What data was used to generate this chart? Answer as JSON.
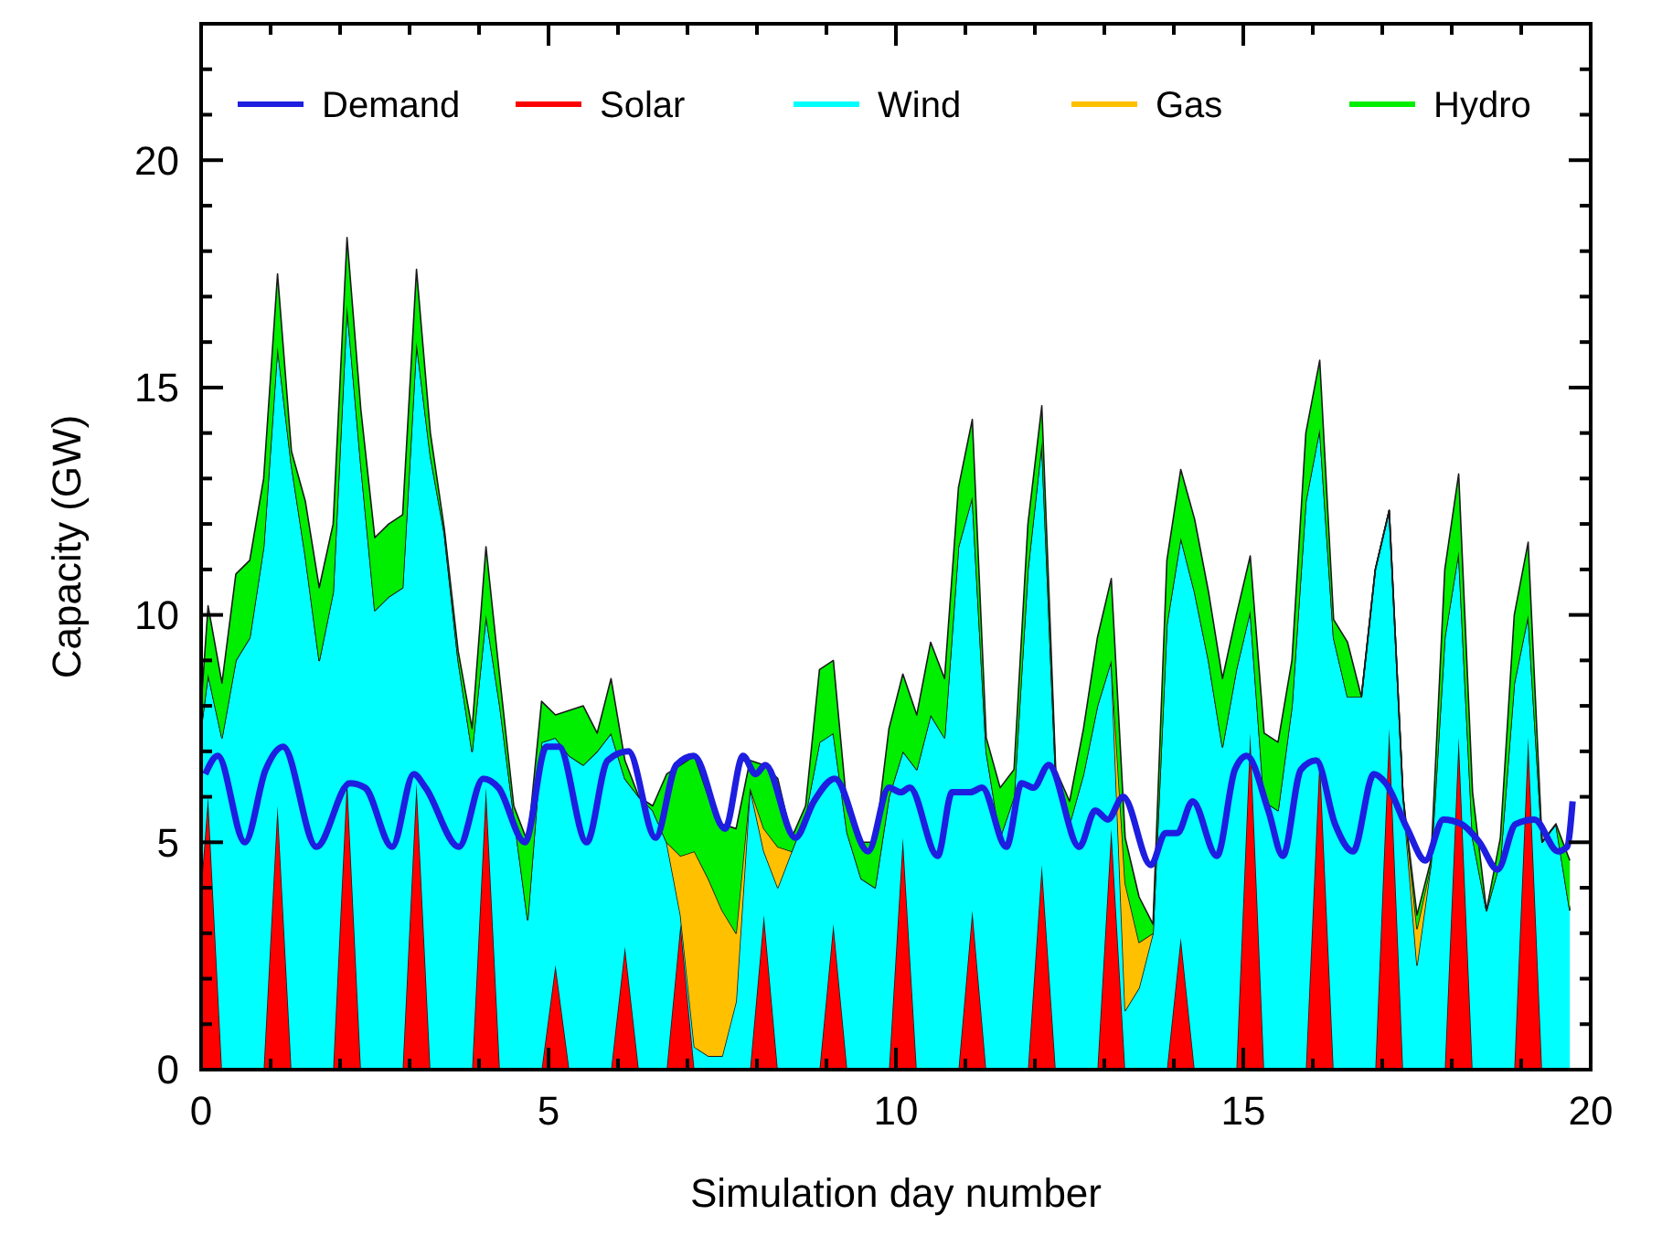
{
  "chart_data": {
    "type": "area",
    "stacked": true,
    "xlabel": "Simulation day number",
    "ylabel": "Capacity (GW)",
    "x": [
      0,
      0.1,
      0.3,
      0.5,
      0.7,
      0.9,
      1.1,
      1.3,
      1.5,
      1.7,
      1.9,
      2.1,
      2.3,
      2.5,
      2.7,
      2.9,
      3.1,
      3.3,
      3.5,
      3.7,
      3.9,
      4.1,
      4.3,
      4.5,
      4.7,
      4.9,
      5.1,
      5.3,
      5.5,
      5.7,
      5.9,
      6.1,
      6.3,
      6.5,
      6.7,
      6.9,
      7.1,
      7.3,
      7.5,
      7.7,
      7.9,
      8.1,
      8.3,
      8.5,
      8.7,
      8.9,
      9.1,
      9.3,
      9.5,
      9.7,
      9.9,
      10.1,
      10.3,
      10.5,
      10.7,
      10.9,
      11.1,
      11.3,
      11.5,
      11.7,
      11.9,
      12.1,
      12.3,
      12.5,
      12.7,
      12.9,
      13.1,
      13.3,
      13.5,
      13.7,
      13.9,
      14.1,
      14.3,
      14.5,
      14.7,
      14.9,
      15.1,
      15.3,
      15.5,
      15.7,
      15.9,
      16.1,
      16.3,
      16.5,
      16.7,
      16.9,
      17.1,
      17.3,
      17.5,
      17.7,
      17.9,
      18.1,
      18.3,
      18.5,
      18.7,
      18.9,
      19.1,
      19.3,
      19.5,
      19.7
    ],
    "series": [
      {
        "name": "Demand",
        "type": "line",
        "color": "#1e1ee0",
        "x": [
          0.06,
          0.24,
          0.63,
          0.93,
          1.18,
          1.66,
          2.14,
          2.36,
          2.75,
          3.06,
          3.23,
          3.71,
          4.06,
          4.28,
          4.66,
          4.97,
          5.15,
          5.55,
          5.85,
          6.15,
          6.54,
          6.84,
          7.09,
          7.54,
          7.8,
          7.98,
          8.12,
          8.55,
          8.82,
          9.12,
          9.6,
          9.9,
          10.07,
          10.2,
          10.6,
          10.81,
          11.07,
          11.24,
          11.59,
          11.81,
          11.98,
          12.2,
          12.64,
          12.87,
          13.05,
          13.27,
          13.67,
          13.88,
          14.05,
          14.27,
          14.62,
          14.88,
          15.05,
          15.36,
          15.57,
          15.83,
          16.05,
          16.32,
          16.58,
          16.88,
          17.05,
          17.36,
          17.62,
          17.88,
          18.14,
          18.4,
          18.66,
          18.92,
          19.19,
          19.53,
          19.66,
          19.74
        ],
        "values": [
          6.5,
          6.9,
          5.0,
          6.6,
          7.1,
          4.9,
          6.3,
          6.2,
          4.9,
          6.5,
          6.2,
          4.9,
          6.4,
          6.2,
          5.0,
          7.1,
          7.1,
          5.0,
          6.8,
          7.0,
          5.1,
          6.7,
          6.9,
          5.3,
          6.9,
          6.5,
          6.7,
          5.1,
          5.9,
          6.4,
          4.8,
          6.2,
          6.1,
          6.2,
          4.7,
          6.1,
          6.1,
          6.2,
          4.9,
          6.3,
          6.2,
          6.7,
          4.9,
          5.7,
          5.5,
          6.0,
          4.5,
          5.2,
          5.2,
          5.9,
          4.7,
          6.6,
          6.9,
          5.7,
          4.7,
          6.6,
          6.8,
          5.4,
          4.8,
          6.5,
          6.3,
          5.3,
          4.6,
          5.5,
          5.4,
          5.0,
          4.4,
          5.4,
          5.5,
          4.8,
          4.9,
          5.9
        ]
      },
      {
        "name": "Solar",
        "color": "#ff0000",
        "values": [
          4.0,
          6.0,
          0,
          0,
          0,
          0,
          5.8,
          0,
          0,
          0,
          0,
          6.4,
          0,
          0,
          0,
          0,
          6.3,
          0,
          0,
          0,
          0,
          6.2,
          0,
          0,
          0,
          0,
          2.3,
          0,
          0,
          0,
          0,
          2.7,
          0,
          0,
          0,
          3.2,
          0,
          0,
          0,
          0,
          0,
          3.4,
          0,
          0,
          0,
          0,
          3.2,
          0,
          0,
          0,
          0,
          5.1,
          0,
          0,
          0,
          0,
          3.5,
          0,
          0,
          0,
          0,
          4.5,
          0,
          0,
          0,
          0,
          5.3,
          0,
          0,
          0,
          0,
          2.9,
          0,
          0,
          0,
          0,
          7.4,
          0,
          0,
          0,
          0,
          6.9,
          0,
          0,
          0,
          0,
          7.5,
          0,
          0,
          0,
          0,
          7.3,
          0,
          0,
          0,
          0,
          7.3,
          0,
          0,
          0
        ]
      },
      {
        "name": "Wind",
        "color": "#00ffff",
        "values": [
          3.5,
          2.7,
          7.3,
          9.0,
          9.5,
          11.5,
          10.1,
          13.3,
          11.3,
          9.0,
          10.5,
          10.4,
          13.3,
          10.1,
          10.4,
          10.6,
          9.7,
          13.5,
          11.8,
          9.0,
          7.0,
          3.8,
          8.0,
          5.6,
          3.3,
          7.2,
          5.0,
          6.9,
          6.7,
          7.0,
          7.4,
          3.7,
          6.0,
          5.7,
          5.0,
          0.2,
          0.5,
          0.3,
          0.3,
          1.5,
          6.2,
          1.4,
          4.0,
          4.8,
          5.6,
          7.2,
          4.2,
          5.2,
          4.2,
          4.0,
          6.0,
          1.9,
          6.6,
          7.8,
          7.3,
          11.5,
          9.1,
          7.0,
          5.1,
          6.0,
          11.0,
          9.3,
          6.4,
          5.4,
          6.5,
          8.0,
          3.7,
          1.3,
          1.8,
          3.0,
          9.8,
          8.8,
          10.5,
          9.0,
          7.1,
          8.8,
          2.7,
          5.9,
          5.7,
          8.0,
          12.5,
          7.2,
          9.5,
          8.2,
          8.2,
          11.0,
          4.8,
          6.0,
          2.3,
          4.5,
          9.5,
          4.1,
          5.1,
          3.5,
          4.6,
          8.5,
          2.7,
          5.0,
          5.4,
          3.5
        ]
      },
      {
        "name": "Gas",
        "color": "#ffc000",
        "values": [
          0,
          0,
          0,
          0,
          0,
          0,
          0,
          0,
          0,
          0,
          0,
          0,
          0,
          0,
          0,
          0,
          0,
          0,
          0,
          0,
          0,
          0,
          0,
          0,
          0,
          0,
          0,
          0,
          0,
          0,
          0,
          0,
          0,
          0,
          0,
          1.3,
          4.3,
          3.9,
          3.2,
          1.5,
          0,
          0.5,
          0.9,
          0,
          0,
          0,
          0,
          0,
          0,
          0,
          0,
          0,
          0,
          0,
          0,
          0,
          0,
          0,
          0,
          0,
          0,
          0,
          0,
          0,
          0,
          0,
          0,
          2.8,
          1.0,
          0,
          0,
          0,
          0,
          0,
          0,
          0,
          0,
          0,
          0,
          0,
          0,
          0,
          0,
          0,
          0,
          0,
          0,
          0,
          0.8,
          0,
          0,
          0,
          0,
          0,
          0,
          0,
          0,
          0,
          0,
          0
        ]
      },
      {
        "name": "Hydro",
        "color": "#00ee00",
        "values": [
          0.5,
          1.5,
          1.2,
          1.9,
          1.7,
          1.5,
          1.6,
          0.3,
          1.2,
          1.6,
          1.5,
          1.5,
          1.2,
          1.6,
          1.6,
          1.6,
          1.6,
          0.5,
          0.1,
          0.2,
          0.5,
          1.5,
          0.6,
          0.2,
          1.7,
          0.9,
          0.5,
          1.0,
          1.3,
          0.4,
          1.2,
          0.4,
          0,
          0.1,
          1.5,
          2.0,
          2.1,
          1.8,
          1.9,
          2.3,
          0.6,
          1.4,
          1.5,
          0.3,
          0.2,
          1.6,
          1.6,
          0.5,
          0.8,
          1.0,
          1.5,
          1.7,
          1.2,
          1.6,
          1.3,
          1.3,
          1.7,
          0.3,
          1.1,
          0.6,
          1.0,
          0.8,
          0.2,
          0.5,
          1.0,
          1.5,
          1.8,
          1.0,
          1.0,
          0.2,
          1.4,
          1.5,
          1.6,
          1.5,
          1.5,
          1.2,
          1.2,
          1.5,
          1.5,
          1.0,
          1.5,
          1.5,
          0.4,
          1.2,
          0,
          0,
          0,
          0,
          0.3,
          0.1,
          1.5,
          1.7,
          1.0,
          0,
          0.5,
          1.5,
          1.6,
          0,
          0,
          1.1
        ]
      }
    ],
    "xlim": [
      0,
      20
    ],
    "ylim": [
      0,
      23
    ],
    "xticks": [
      0,
      {
        "value": 1,
        "label": null
      },
      {
        "value": 2,
        "label": null
      },
      {
        "value": 3,
        "label": null
      },
      {
        "value": 4,
        "label": null
      },
      5,
      {
        "value": 6,
        "label": null
      },
      {
        "value": 7,
        "label": null
      },
      {
        "value": 8,
        "label": null
      },
      {
        "value": 9,
        "label": null
      },
      10,
      {
        "value": 11,
        "label": null
      },
      {
        "value": 12,
        "label": null
      },
      {
        "value": 13,
        "label": null
      },
      {
        "value": 14,
        "label": null
      },
      15,
      {
        "value": 16,
        "label": null
      },
      {
        "value": 17,
        "label": null
      },
      {
        "value": 18,
        "label": null
      },
      {
        "value": 19,
        "label": null
      },
      20
    ],
    "yticks": [
      0,
      {
        "value": 1,
        "label": null
      },
      {
        "value": 2,
        "label": null
      },
      {
        "value": 3,
        "label": null
      },
      {
        "value": 4,
        "label": null
      },
      5,
      {
        "value": 6,
        "label": null
      },
      {
        "value": 7,
        "label": null
      },
      {
        "value": 8,
        "label": null
      },
      {
        "value": 9,
        "label": null
      },
      10,
      {
        "value": 11,
        "label": null
      },
      {
        "value": 12,
        "label": null
      },
      {
        "value": 13,
        "label": null
      },
      {
        "value": 14,
        "label": null
      },
      15,
      {
        "value": 16,
        "label": null
      },
      {
        "value": 17,
        "label": null
      },
      {
        "value": 18,
        "label": null
      },
      {
        "value": 19,
        "label": null
      },
      20,
      {
        "value": 21,
        "label": null
      },
      {
        "value": 22,
        "label": null
      }
    ],
    "grid": false,
    "legend": "top"
  }
}
